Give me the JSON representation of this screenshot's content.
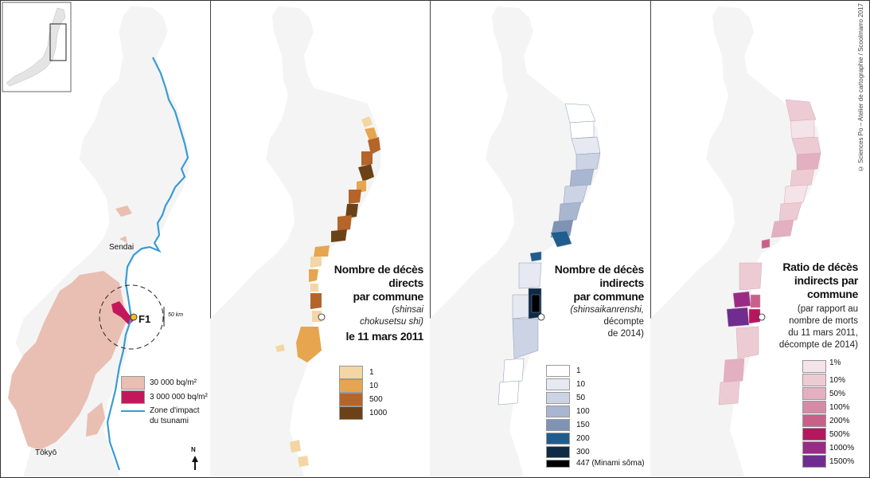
{
  "credit": "© Sciences Po – Atelier de cartographie / Scoolmarro 2017",
  "panel1": {
    "place_labels": {
      "sendai": "Sendai",
      "tokyo": "Tōkyō",
      "f1": "F1",
      "radius": "50 km",
      "north": "N"
    },
    "legend": [
      {
        "label": "30 000 bq/m²",
        "color": "#e8bfb2"
      },
      {
        "label": "3 000 000 bq/m²",
        "color": "#c2185b"
      }
    ],
    "tsunami_label_1": "Zone d'impact",
    "tsunami_label_2": "du tsunami",
    "colors": {
      "tsunami": "#3a9bd5",
      "contamination": "#e8bfb2",
      "high": "#c2185b"
    }
  },
  "panel2": {
    "title_lines": [
      "Nombre de décès",
      "directs",
      "par commune"
    ],
    "sub_line_1": "(shinsai",
    "sub_line_2": "chokusetsu shi)",
    "title_date": "le 11 mars 2011",
    "legend": [
      {
        "label": "1",
        "color": "#f3d6a4"
      },
      {
        "label": "10",
        "color": "#e6a54e"
      },
      {
        "label": "500",
        "color": "#b5642a"
      },
      {
        "label": "1000",
        "color": "#6b4218"
      }
    ]
  },
  "panel3": {
    "title_lines": [
      "Nombre de décès",
      "indirects",
      "par commune"
    ],
    "sub_line_1": "(shinsaikanrenshi,",
    "sub_line_2": "décompte",
    "sub_line_3": "de 2014)",
    "legend": [
      {
        "label": "1",
        "color": "#ffffff"
      },
      {
        "label": "10",
        "color": "#e6e9f2"
      },
      {
        "label": "50",
        "color": "#ccd3e4"
      },
      {
        "label": "100",
        "color": "#a9b6cf"
      },
      {
        "label": "150",
        "color": "#7f93b5"
      },
      {
        "label": "200",
        "color": "#1f5d8f"
      },
      {
        "label": "300",
        "color": "#0e2a45"
      },
      {
        "label": "447 (Minami sôma)",
        "color": "#000000"
      }
    ]
  },
  "panel4": {
    "title_lines": [
      "Ratio de décès",
      "indirects par",
      "commune"
    ],
    "sub_lines": [
      "(par rapport au",
      "nombre de morts",
      "du 11 mars 2011,",
      "décompte de 2014)"
    ],
    "legend": [
      {
        "label": "1%",
        "color": "#f4e3e8"
      },
      {
        "label": "10%",
        "color": "#eccbd5"
      },
      {
        "label": "50%",
        "color": "#e2b0c0"
      },
      {
        "label": "100%",
        "color": "#d68aa5"
      },
      {
        "label": "200%",
        "color": "#c9608a"
      },
      {
        "label": "500%",
        "color": "#b5175f"
      },
      {
        "label": "1000%",
        "color": "#9b2a86"
      },
      {
        "label": "1500%",
        "color": "#6f2d8f"
      }
    ]
  }
}
